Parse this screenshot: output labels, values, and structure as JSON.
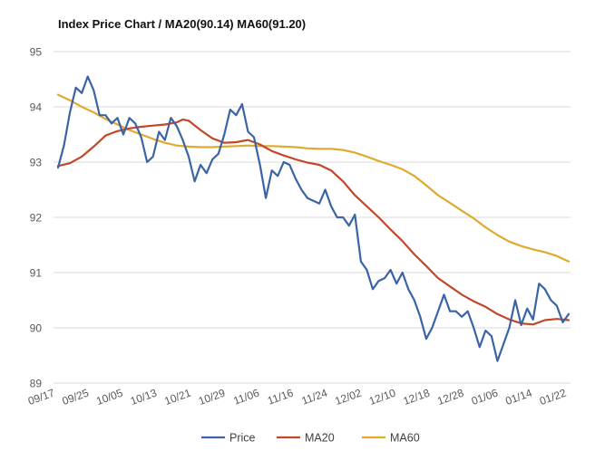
{
  "chart_data": {
    "type": "line",
    "title": "Index Price Chart / MA20(90.14) MA60(91.20)",
    "xlabel": "",
    "ylabel": "",
    "ylim": [
      89,
      95
    ],
    "yticks": [
      89,
      90,
      91,
      92,
      93,
      94,
      95
    ],
    "xtick_labels": [
      "09/17",
      "09/25",
      "10/05",
      "10/13",
      "10/21",
      "10/29",
      "11/06",
      "11/16",
      "11/24",
      "12/02",
      "12/10",
      "12/18",
      "12/28",
      "01/06",
      "01/14",
      "01/22"
    ],
    "grid": true,
    "legend": "bottom",
    "colors": {
      "Price": "#3b64a6",
      "MA20": "#c0482a",
      "MA60": "#e0aa2e",
      "grid": "#d9d9d9"
    },
    "series": [
      {
        "name": "Price",
        "points": [
          [
            0,
            92.9
          ],
          [
            0.5,
            93.3
          ],
          [
            1,
            93.9
          ],
          [
            1.5,
            94.35
          ],
          [
            2,
            94.25
          ],
          [
            2.5,
            94.55
          ],
          [
            3,
            94.3
          ],
          [
            3.5,
            93.85
          ],
          [
            4,
            93.85
          ],
          [
            4.5,
            93.7
          ],
          [
            5,
            93.8
          ],
          [
            5.5,
            93.5
          ],
          [
            6,
            93.8
          ],
          [
            6.5,
            93.7
          ],
          [
            7,
            93.45
          ],
          [
            7.5,
            93.0
          ],
          [
            8,
            93.1
          ],
          [
            8.5,
            93.55
          ],
          [
            9,
            93.4
          ],
          [
            9.5,
            93.8
          ],
          [
            10,
            93.65
          ],
          [
            10.5,
            93.4
          ],
          [
            11,
            93.1
          ],
          [
            11.5,
            92.65
          ],
          [
            12,
            92.95
          ],
          [
            12.5,
            92.8
          ],
          [
            13,
            93.05
          ],
          [
            13.5,
            93.15
          ],
          [
            14,
            93.5
          ],
          [
            14.5,
            93.95
          ],
          [
            15,
            93.85
          ],
          [
            15.5,
            94.05
          ],
          [
            16,
            93.55
          ],
          [
            16.5,
            93.45
          ],
          [
            17,
            92.95
          ],
          [
            17.5,
            92.35
          ],
          [
            18,
            92.85
          ],
          [
            18.5,
            92.75
          ],
          [
            19,
            93.0
          ],
          [
            19.5,
            92.95
          ],
          [
            20,
            92.7
          ],
          [
            20.5,
            92.5
          ],
          [
            21,
            92.35
          ],
          [
            21.5,
            92.3
          ],
          [
            22,
            92.25
          ],
          [
            22.5,
            92.5
          ],
          [
            23,
            92.2
          ],
          [
            23.5,
            92.0
          ],
          [
            24,
            92.0
          ],
          [
            24.5,
            91.85
          ],
          [
            25,
            92.05
          ],
          [
            25.5,
            91.2
          ],
          [
            26,
            91.05
          ],
          [
            26.5,
            90.7
          ],
          [
            27,
            90.85
          ],
          [
            27.5,
            90.9
          ],
          [
            28,
            91.05
          ],
          [
            28.5,
            90.8
          ],
          [
            29,
            91.0
          ],
          [
            29.5,
            90.7
          ],
          [
            30,
            90.5
          ],
          [
            30.5,
            90.2
          ],
          [
            31,
            89.8
          ],
          [
            31.5,
            90.0
          ],
          [
            32,
            90.3
          ],
          [
            32.5,
            90.6
          ],
          [
            33,
            90.3
          ],
          [
            33.5,
            90.3
          ],
          [
            34,
            90.2
          ],
          [
            34.5,
            90.3
          ],
          [
            35,
            90.0
          ],
          [
            35.5,
            89.65
          ],
          [
            36,
            89.95
          ],
          [
            36.5,
            89.85
          ],
          [
            37,
            89.4
          ],
          [
            37.5,
            89.7
          ],
          [
            38,
            90.0
          ],
          [
            38.5,
            90.5
          ],
          [
            39,
            90.05
          ],
          [
            39.5,
            90.35
          ],
          [
            40,
            90.15
          ],
          [
            40.5,
            90.8
          ],
          [
            41,
            90.7
          ],
          [
            41.5,
            90.5
          ],
          [
            42,
            90.4
          ],
          [
            42.5,
            90.1
          ],
          [
            43,
            90.25
          ]
        ]
      },
      {
        "name": "MA20",
        "points": [
          [
            0,
            92.93
          ],
          [
            1,
            92.98
          ],
          [
            2,
            93.1
          ],
          [
            3,
            93.28
          ],
          [
            4,
            93.48
          ],
          [
            5,
            93.56
          ],
          [
            6,
            93.61
          ],
          [
            7,
            93.64
          ],
          [
            8,
            93.66
          ],
          [
            9,
            93.68
          ],
          [
            10,
            93.72
          ],
          [
            10.5,
            93.77
          ],
          [
            11,
            93.75
          ],
          [
            12,
            93.58
          ],
          [
            13,
            93.43
          ],
          [
            14,
            93.35
          ],
          [
            15,
            93.36
          ],
          [
            16,
            93.4
          ],
          [
            17,
            93.32
          ],
          [
            18,
            93.2
          ],
          [
            19,
            93.12
          ],
          [
            20,
            93.05
          ],
          [
            21,
            92.99
          ],
          [
            22,
            92.95
          ],
          [
            23,
            92.85
          ],
          [
            24,
            92.65
          ],
          [
            25,
            92.4
          ],
          [
            26,
            92.2
          ],
          [
            27,
            92.0
          ],
          [
            28,
            91.78
          ],
          [
            29,
            91.57
          ],
          [
            30,
            91.33
          ],
          [
            31,
            91.12
          ],
          [
            32,
            90.9
          ],
          [
            33,
            90.75
          ],
          [
            34,
            90.6
          ],
          [
            35,
            90.48
          ],
          [
            36,
            90.38
          ],
          [
            37,
            90.25
          ],
          [
            38,
            90.15
          ],
          [
            39,
            90.08
          ],
          [
            40,
            90.06
          ],
          [
            41,
            90.14
          ],
          [
            42,
            90.16
          ],
          [
            43,
            90.14
          ]
        ]
      },
      {
        "name": "MA60",
        "points": [
          [
            0,
            94.22
          ],
          [
            1,
            94.12
          ],
          [
            2,
            94.0
          ],
          [
            3,
            93.9
          ],
          [
            4,
            93.78
          ],
          [
            5,
            93.68
          ],
          [
            6,
            93.58
          ],
          [
            7,
            93.5
          ],
          [
            8,
            93.42
          ],
          [
            9,
            93.35
          ],
          [
            10,
            93.3
          ],
          [
            11,
            93.28
          ],
          [
            12,
            93.27
          ],
          [
            13,
            93.27
          ],
          [
            14,
            93.28
          ],
          [
            15,
            93.29
          ],
          [
            16,
            93.3
          ],
          [
            17,
            93.29
          ],
          [
            18,
            93.29
          ],
          [
            19,
            93.28
          ],
          [
            20,
            93.27
          ],
          [
            21,
            93.25
          ],
          [
            22,
            93.24
          ],
          [
            23,
            93.24
          ],
          [
            24,
            93.22
          ],
          [
            25,
            93.17
          ],
          [
            26,
            93.1
          ],
          [
            27,
            93.02
          ],
          [
            28,
            92.95
          ],
          [
            29,
            92.87
          ],
          [
            30,
            92.75
          ],
          [
            31,
            92.58
          ],
          [
            32,
            92.4
          ],
          [
            33,
            92.26
          ],
          [
            34,
            92.12
          ],
          [
            35,
            91.98
          ],
          [
            36,
            91.82
          ],
          [
            37,
            91.68
          ],
          [
            38,
            91.56
          ],
          [
            39,
            91.48
          ],
          [
            40,
            91.42
          ],
          [
            41,
            91.37
          ],
          [
            42,
            91.3
          ],
          [
            43,
            91.2
          ]
        ]
      }
    ]
  }
}
